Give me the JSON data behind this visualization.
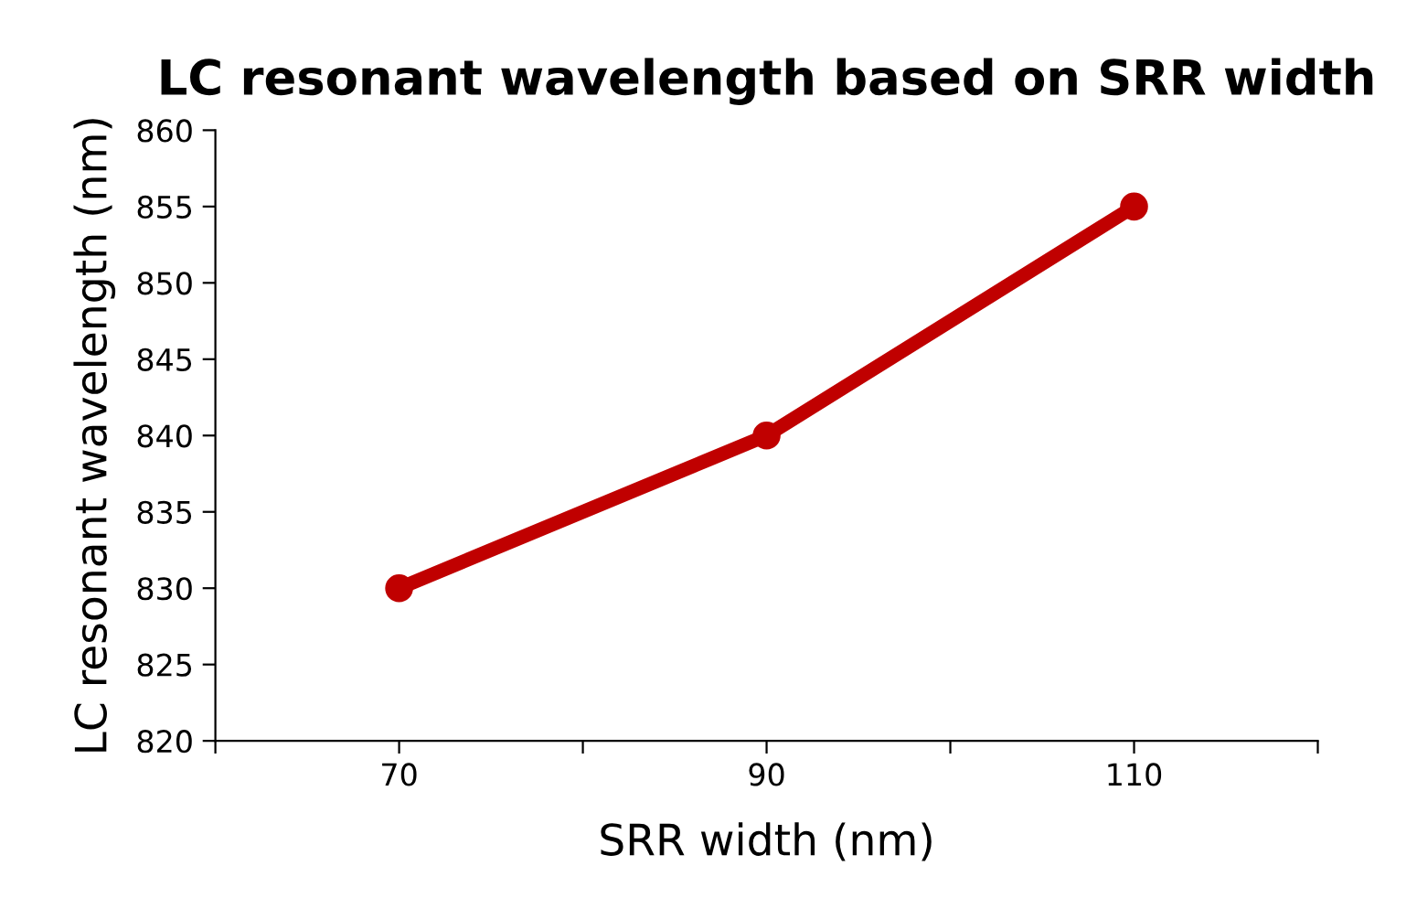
{
  "chart_data": {
    "type": "line",
    "title": "LC resonant wavelength based on SRR width",
    "xlabel": "SRR width (nm)",
    "ylabel": "LC resonant wavelength (nm)",
    "x": [
      70,
      90,
      110
    ],
    "series": [
      {
        "color": "#c00000",
        "values": [
          830,
          840,
          855
        ]
      }
    ],
    "xlim": [
      60,
      120
    ],
    "xticks": [
      {
        "value": 60,
        "label": null
      },
      70,
      {
        "value": 80,
        "label": null
      },
      90,
      {
        "value": 100,
        "label": null
      },
      110,
      {
        "value": 120,
        "label": null
      }
    ],
    "ylim": [
      820,
      860
    ],
    "yticks": [
      820,
      825,
      830,
      835,
      840,
      845,
      850,
      855,
      860
    ],
    "grid": false,
    "legend": false,
    "marker": "circle",
    "line_style": "solid"
  }
}
